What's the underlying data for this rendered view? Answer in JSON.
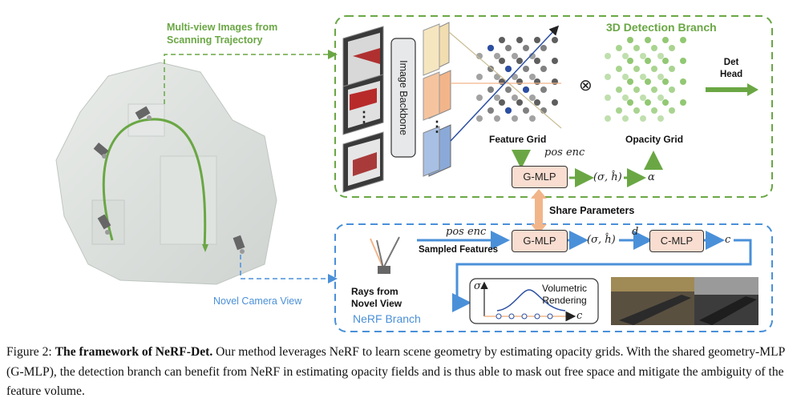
{
  "figure": {
    "multiview_label_line1": "Multi-view Images from",
    "multiview_label_line2": "Scanning Trajectory",
    "novel_camera_label": "Novel Camera View",
    "detection_branch_title": "3D Detection Branch",
    "image_backbone": "Image Backbone",
    "feature_grid": "Feature Grid",
    "opacity_grid": "Opacity Grid",
    "det_head_line1": "Det",
    "det_head_line2": "Head",
    "pos_enc_top": "pos enc",
    "gmlp_top": "G-MLP",
    "sigma_h_top": "(σ, ĥ)",
    "alpha": "α",
    "otimes": "⊗",
    "share_parameters": "Share Parameters",
    "nerf_branch_title": "NeRF Branch",
    "rays_line1": "Rays from",
    "rays_line2": "Novel View",
    "pos_enc_bottom": "pos enc",
    "sampled_features": "Sampled Features",
    "gmlp_bottom": "G-MLP",
    "sigma_h_bottom": "(σ, ĥ)",
    "d_label": "d",
    "cmlp": "C-MLP",
    "c_label": "c",
    "sigma_axis": "σ",
    "c_axis": "c",
    "volumetric_line1": "Volumetric",
    "volumetric_line2": "Rendering",
    "dots_left": "⋮",
    "dots_feat": "⋮"
  },
  "caption": {
    "prefix": "Figure 2: ",
    "title": "The framework of NeRF-Det.",
    "body": " Our method leverages NeRF to learn scene geometry by estimating opacity grids. With the shared geometry-MLP (G-MLP), the detection branch can benefit from NeRF in estimating opacity fields and is thus able to mask out free space and mitigate the ambiguity of the feature volume."
  },
  "colors": {
    "green": "#6aa744",
    "blue": "#4a90d9",
    "orange": "#f2b58a",
    "mlp_fill": "#f8ddd0"
  }
}
